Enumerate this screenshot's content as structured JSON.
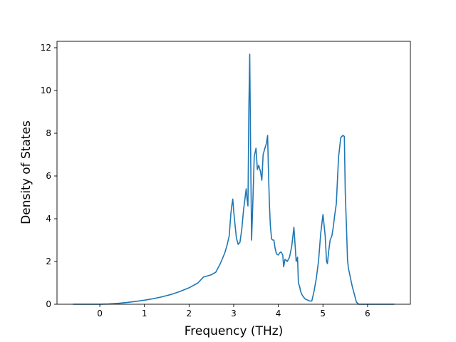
{
  "chart_data": {
    "type": "line",
    "title": "",
    "xlabel": "Frequency (THz)",
    "ylabel": "Density of States",
    "xlim": [
      -0.96,
      6.96
    ],
    "ylim": [
      0,
      12.3
    ],
    "x_ticks": [
      0,
      1,
      2,
      3,
      4,
      5,
      6
    ],
    "x_tick_labels": [
      "0",
      "1",
      "2",
      "3",
      "4",
      "5",
      "6"
    ],
    "y_ticks": [
      0,
      2,
      4,
      6,
      8,
      10,
      12
    ],
    "y_tick_labels": [
      "0",
      "2",
      "4",
      "6",
      "8",
      "10",
      "12"
    ],
    "grid": false,
    "legend": "none",
    "series": [
      {
        "color": "#1f77b4",
        "x": [
          -0.6,
          -0.2,
          0.0,
          0.2,
          0.4,
          0.6,
          0.8,
          1.0,
          1.2,
          1.4,
          1.6,
          1.8,
          2.0,
          2.2,
          2.32,
          2.5,
          2.6,
          2.7,
          2.8,
          2.85,
          2.9,
          2.94,
          2.96,
          2.98,
          3.0,
          3.03,
          3.06,
          3.1,
          3.14,
          3.18,
          3.22,
          3.28,
          3.3,
          3.32,
          3.34,
          3.36,
          3.375,
          3.4,
          3.43,
          3.46,
          3.5,
          3.53,
          3.56,
          3.6,
          3.63,
          3.66,
          3.7,
          3.73,
          3.76,
          3.78,
          3.8,
          3.82,
          3.85,
          3.88,
          3.9,
          3.93,
          3.96,
          4.0,
          4.03,
          4.06,
          4.1,
          4.12,
          4.15,
          4.18,
          4.2,
          4.25,
          4.3,
          4.35,
          4.4,
          4.43,
          4.45,
          4.48,
          4.5,
          4.53,
          4.56,
          4.6,
          4.65,
          4.7,
          4.75,
          4.8,
          4.85,
          4.9,
          4.95,
          5.0,
          5.05,
          5.08,
          5.1,
          5.13,
          5.16,
          5.2,
          5.23,
          5.26,
          5.3,
          5.35,
          5.4,
          5.45,
          5.48,
          5.5,
          5.53,
          5.55,
          5.57,
          5.6,
          5.63,
          5.66,
          5.7,
          5.75,
          5.8,
          5.85,
          5.9,
          5.93,
          5.96,
          6.0,
          6.1,
          6.3,
          6.6
        ],
        "y": [
          0,
          0,
          0,
          0.01,
          0.04,
          0.08,
          0.13,
          0.19,
          0.26,
          0.35,
          0.46,
          0.6,
          0.77,
          1.0,
          1.27,
          1.38,
          1.5,
          1.9,
          2.4,
          2.75,
          3.2,
          4.3,
          4.65,
          4.92,
          4.35,
          3.7,
          3.1,
          2.8,
          2.9,
          3.5,
          4.4,
          5.4,
          4.9,
          4.6,
          9.2,
          11.7,
          8.0,
          3.0,
          4.8,
          6.9,
          7.3,
          6.3,
          6.5,
          6.2,
          5.8,
          7.0,
          7.3,
          7.5,
          7.9,
          6.2,
          4.7,
          3.7,
          3.05,
          3.0,
          3.0,
          2.6,
          2.35,
          2.3,
          2.4,
          2.45,
          2.3,
          1.75,
          2.1,
          2.05,
          2.0,
          2.2,
          2.7,
          3.6,
          2.0,
          2.2,
          1.0,
          0.8,
          0.6,
          0.45,
          0.35,
          0.25,
          0.2,
          0.15,
          0.15,
          0.6,
          1.2,
          2.0,
          3.3,
          4.2,
          3.2,
          2.0,
          1.9,
          2.5,
          3.0,
          3.2,
          3.6,
          4.1,
          4.7,
          6.9,
          7.8,
          7.9,
          7.85,
          5.2,
          3.5,
          2.1,
          1.7,
          1.4,
          1.1,
          0.8,
          0.5,
          0.1,
          0.0,
          0,
          0,
          0,
          0,
          0,
          0,
          0,
          0
        ]
      }
    ]
  }
}
